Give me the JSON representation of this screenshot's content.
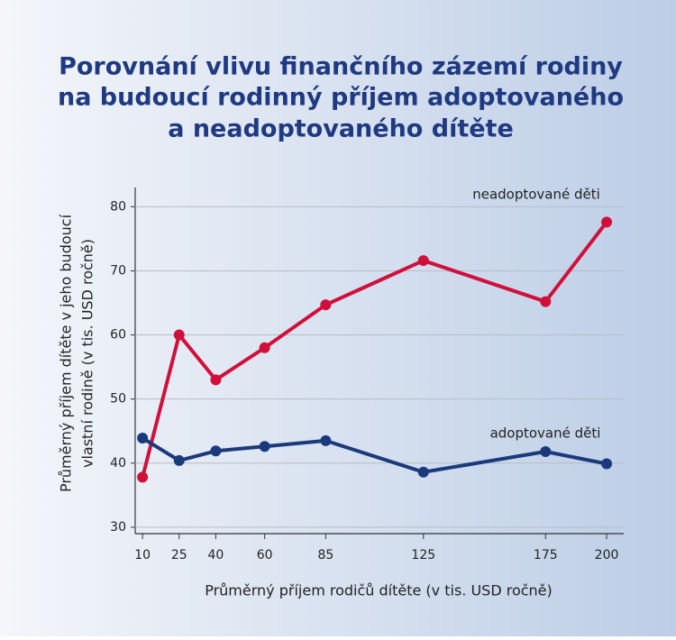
{
  "chart_data": {
    "type": "line",
    "title": [
      "Porovnání vlivu finančního zázemí rodiny",
      "na budoucí rodinný příjem adoptovaného",
      "a neadoptovaného dítěte"
    ],
    "xlabel": "Průměrný příjem rodičů dítěte (v tis. USD ročně)",
    "ylabel": [
      "Průměrný příjem dítěte v jeho budoucí",
      "vlastní rodině (v tis. USD ročně)"
    ],
    "x": [
      10,
      25,
      40,
      60,
      85,
      125,
      175,
      200
    ],
    "series": [
      {
        "name": "neadoptované děti",
        "color": "#d0103a",
        "values": [
          37.8,
          60,
          53,
          58,
          64.7,
          71.6,
          65.2,
          77.6
        ]
      },
      {
        "name": "adoptované děti",
        "color": "#1a3a7c",
        "values": [
          43.9,
          40.4,
          41.9,
          42.6,
          43.5,
          38.6,
          41.8,
          39.9
        ]
      }
    ],
    "xlim": [
      7,
      207
    ],
    "xticks": [
      10,
      25,
      40,
      60,
      85,
      125,
      175,
      200
    ],
    "ylim": [
      29,
      83
    ],
    "yticks": [
      30,
      40,
      50,
      60,
      70,
      80
    ],
    "grid": true
  }
}
